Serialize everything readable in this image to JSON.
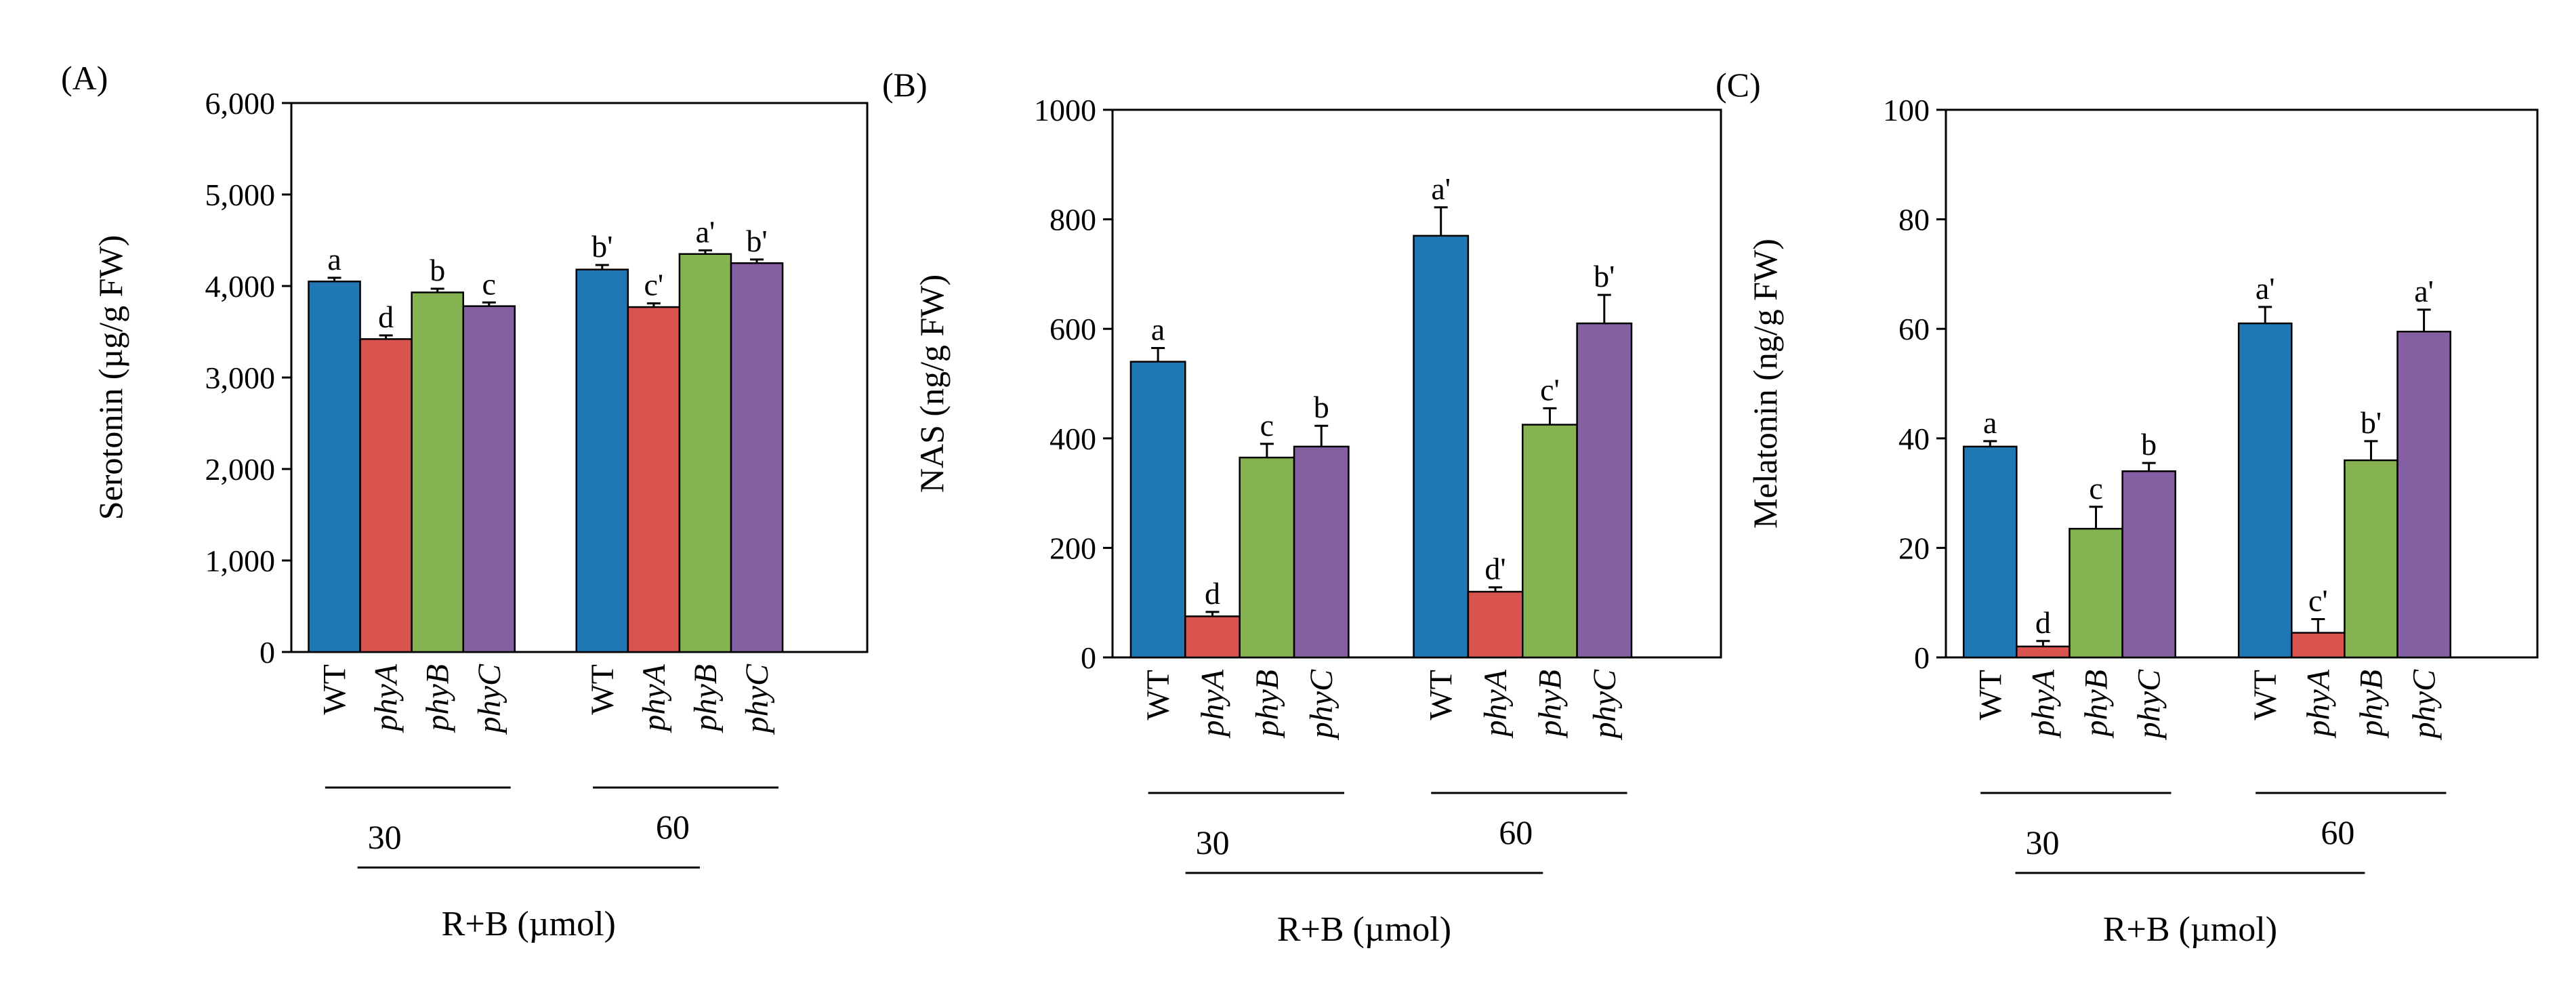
{
  "chart_data": [
    {
      "type": "bar",
      "panel_label": "(A)",
      "ylabel": "Serotonin (µg/g FW)",
      "xlabel": "R+B (µmol)",
      "ylim": [
        0,
        6000
      ],
      "yticks": [
        0,
        1000,
        2000,
        3000,
        4000,
        5000,
        6000
      ],
      "ytick_labels": [
        "0",
        "1,000",
        "2,000",
        "3,000",
        "4,000",
        "5,000",
        "6,000"
      ],
      "categories": [
        "WT",
        "phyA",
        "phyB",
        "phyC"
      ],
      "groups": [
        {
          "label": "30",
          "values": [
            4050,
            3420,
            3930,
            3780
          ],
          "errors": [
            40,
            40,
            40,
            40
          ],
          "sig": [
            "a",
            "d",
            "b",
            "c"
          ]
        },
        {
          "label": "60",
          "values": [
            4180,
            3770,
            4350,
            4250
          ],
          "errors": [
            50,
            40,
            40,
            40
          ],
          "sig": [
            "b'",
            "c'",
            "a'",
            "b'"
          ]
        }
      ]
    },
    {
      "type": "bar",
      "panel_label": "(B)",
      "ylabel": "NAS (ng/g FW)",
      "xlabel": "R+B (µmol)",
      "ylim": [
        0,
        1000
      ],
      "yticks": [
        0,
        200,
        400,
        600,
        800,
        1000
      ],
      "ytick_labels": [
        "0",
        "200",
        "400",
        "600",
        "800",
        "1000"
      ],
      "categories": [
        "WT",
        "phyA",
        "phyB",
        "phyC"
      ],
      "groups": [
        {
          "label": "30",
          "values": [
            540,
            75,
            365,
            385
          ],
          "errors": [
            25,
            8,
            25,
            38
          ],
          "sig": [
            "a",
            "d",
            "c",
            "b"
          ]
        },
        {
          "label": "60",
          "values": [
            770,
            120,
            425,
            610
          ],
          "errors": [
            52,
            8,
            30,
            52
          ],
          "sig": [
            "a'",
            "d'",
            "c'",
            "b'"
          ]
        }
      ]
    },
    {
      "type": "bar",
      "panel_label": "(C)",
      "ylabel": "Melatonin (ng/g FW)",
      "xlabel": "R+B (µmol)",
      "ylim": [
        0,
        100
      ],
      "yticks": [
        0,
        20,
        40,
        60,
        80,
        100
      ],
      "ytick_labels": [
        "0",
        "20",
        "40",
        "60",
        "80",
        "100"
      ],
      "categories": [
        "WT",
        "phyA",
        "phyB",
        "phyC"
      ],
      "groups": [
        {
          "label": "30",
          "values": [
            38.5,
            2.0,
            23.5,
            34.0
          ],
          "errors": [
            1.0,
            1.0,
            4.0,
            1.5
          ],
          "sig": [
            "a",
            "d",
            "c",
            "b"
          ]
        },
        {
          "label": "60",
          "values": [
            61.0,
            4.5,
            36.0,
            59.5
          ],
          "errors": [
            3.0,
            2.5,
            3.5,
            4.0
          ],
          "sig": [
            "a'",
            "c'",
            "b'",
            "a'"
          ]
        }
      ]
    }
  ],
  "colors": {
    "WT": "#1f77b4",
    "phyA": "#d9534f",
    "phyB": "#86b352",
    "phyC": "#8460a3"
  }
}
